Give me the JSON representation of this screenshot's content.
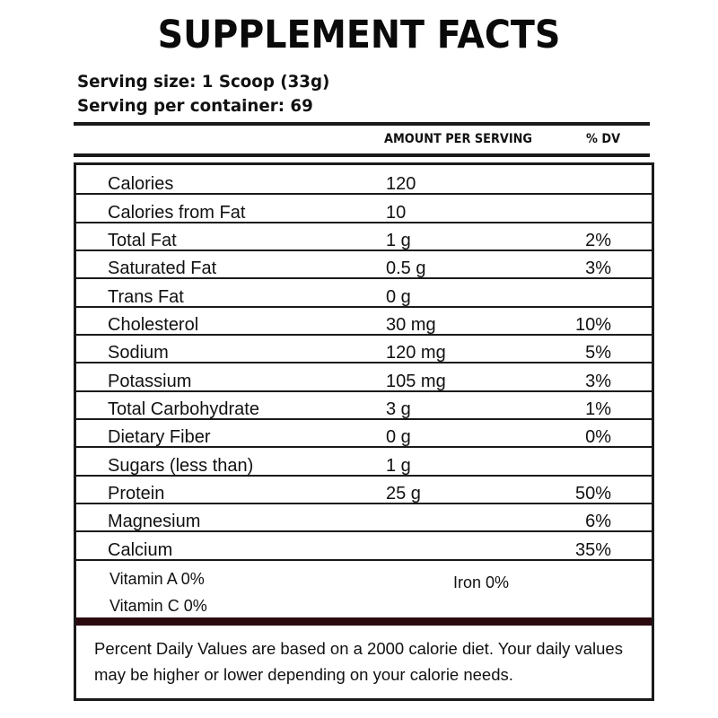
{
  "title": "SUPPLEMENT FACTS",
  "serving_size": "Serving size: 1 Scoop (33g)",
  "servings_per_container": "Serving per container: 69",
  "columns": {
    "amount": "AMOUNT PER SERVING",
    "dv": "% DV"
  },
  "nutrients": [
    {
      "name": "Calories",
      "amount": "120",
      "dv": ""
    },
    {
      "name": "Calories from Fat",
      "amount": "10",
      "dv": ""
    },
    {
      "name": "Total Fat",
      "amount": "1 g",
      "dv": "2%"
    },
    {
      "name": "Saturated Fat",
      "amount": "0.5 g",
      "dv": "3%"
    },
    {
      "name": "Trans Fat",
      "amount": "0 g",
      "dv": ""
    },
    {
      "name": "Cholesterol",
      "amount": "30 mg",
      "dv": "10%"
    },
    {
      "name": "Sodium",
      "amount": "120 mg",
      "dv": "5%"
    },
    {
      "name": "Potassium",
      "amount": "105 mg",
      "dv": "3%"
    },
    {
      "name": "Total Carbohydrate",
      "amount": "3 g",
      "dv": "1%"
    },
    {
      "name": "Dietary Fiber",
      "amount": "0 g",
      "dv": "0%"
    },
    {
      "name": "Sugars (less than)",
      "amount": "1 g",
      "dv": ""
    },
    {
      "name": "Protein",
      "amount": "25 g",
      "dv": "50%"
    },
    {
      "name": "Magnesium",
      "amount": "",
      "dv": "6%"
    },
    {
      "name": "Calcium",
      "amount": "",
      "dv": "35%"
    }
  ],
  "vitamins": {
    "vitamin_a": "Vitamin A  0%",
    "vitamin_c": "Vitamin C  0%",
    "iron": "Iron  0%"
  },
  "footnote": "Percent Daily Values are based on a 2000 calorie diet. Your daily values may be higher or lower depending on your calorie needs.",
  "colors": {
    "text": "#111111",
    "rule": "#1a1a1a",
    "divider_bar": "#2b0a0e"
  }
}
